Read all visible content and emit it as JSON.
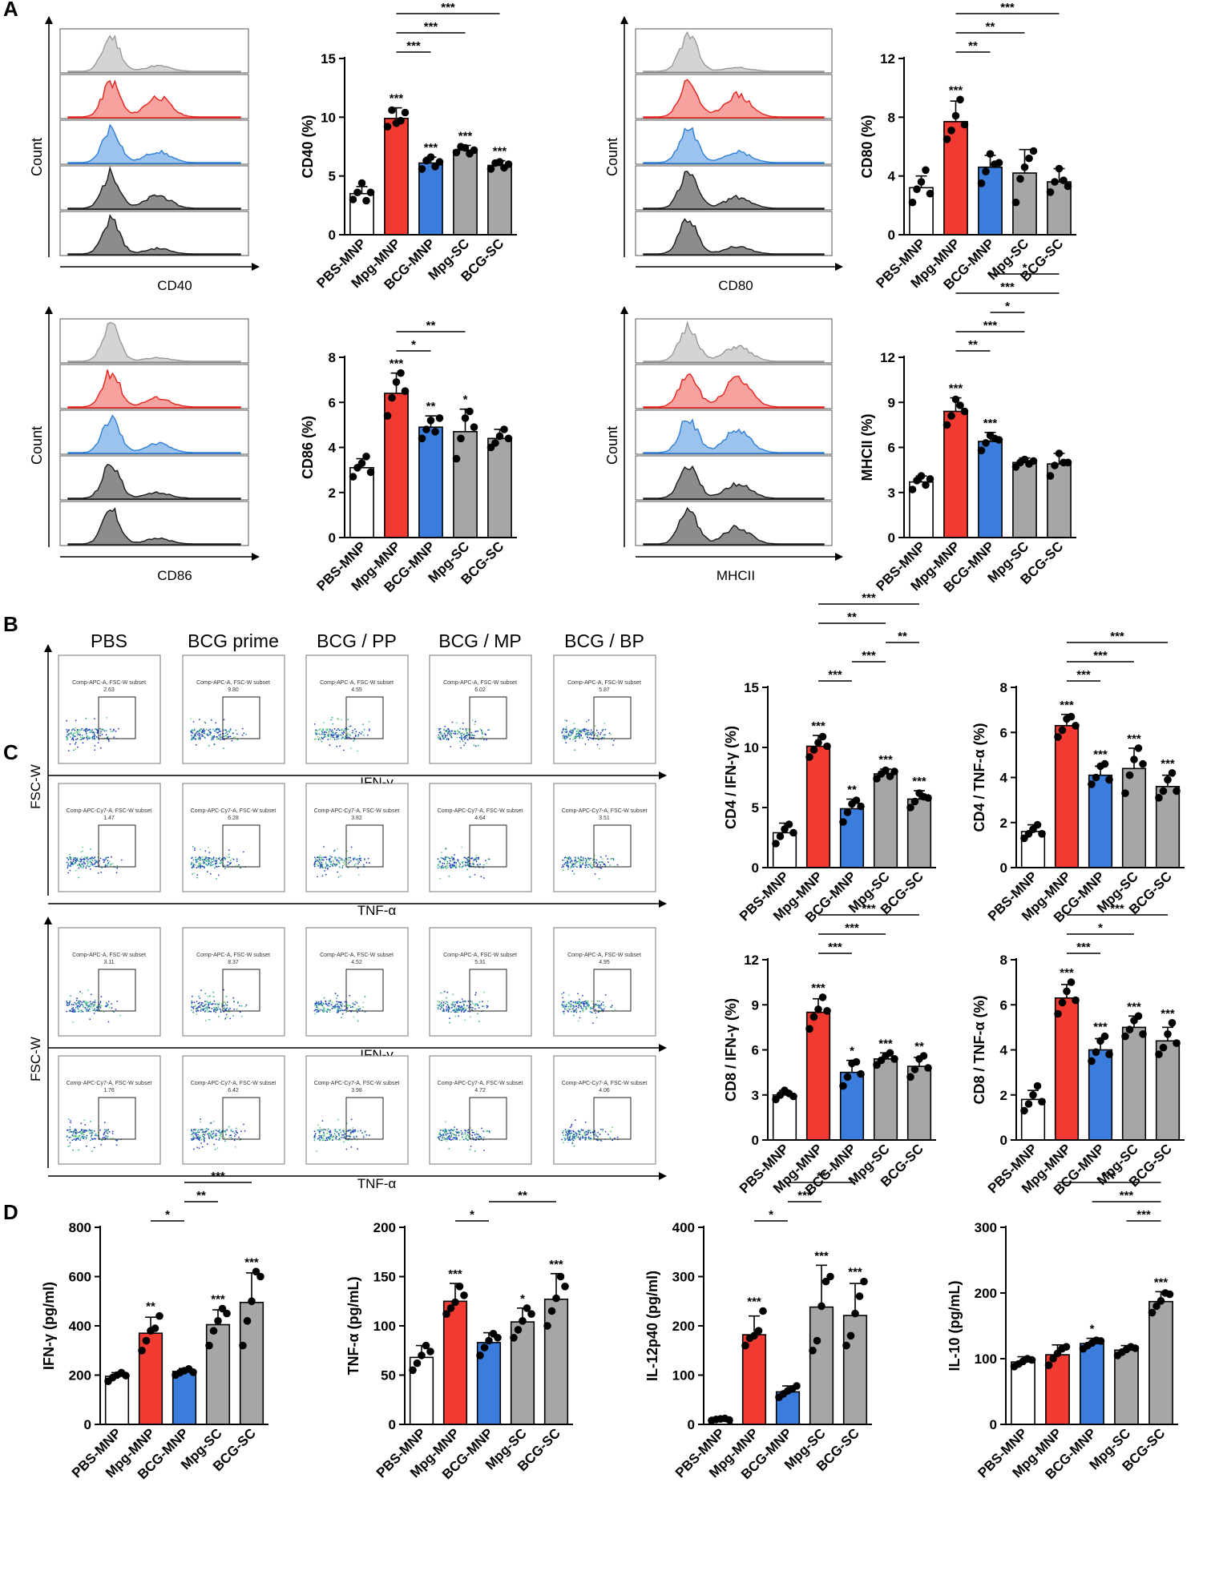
{
  "panel_labels": [
    "A",
    "B",
    "C",
    "D"
  ],
  "colors": {
    "pbs": "#ffffff",
    "mpg": "#f03a32",
    "bcg": "#3a7ddc",
    "gray": "#a6a6a6",
    "dark": "#444444"
  },
  "flow_A": [
    {
      "xlabel": "CD40",
      "ylabel": "Count"
    },
    {
      "xlabel": "CD80",
      "ylabel": "Count"
    },
    {
      "xlabel": "CD86",
      "ylabel": "Count"
    },
    {
      "xlabel": "MHCII",
      "ylabel": "Count"
    }
  ],
  "flow_B": {
    "conditions": [
      "PBS",
      "BCG prime",
      "BCG / PP",
      "BCG / MP",
      "BCG / BP"
    ],
    "ylabel": "FSC-W",
    "row_labels": [
      "IFN-γ",
      "TNF-α"
    ],
    "gate_names": [
      "Comp-APC-A, FSC-W subset",
      "Comp-APC-Cy7-A, FSC-W subset"
    ],
    "gate_values": [
      [
        "2.63",
        "9.80",
        "4.55",
        "6.02",
        "5.87"
      ],
      [
        "1.47",
        "6.28",
        "3.82",
        "4.64",
        "3.51"
      ]
    ]
  },
  "flow_C": {
    "ylabel": "FSC-W",
    "row_labels": [
      "IFN-γ",
      "TNF-α"
    ],
    "gate_names": [
      "Comp-APC-A, FSC-W subset",
      "Comp-APC-Cy7-A, FSC-W subset"
    ],
    "gate_values": [
      [
        "3.11",
        "8.37",
        "4.52",
        "5.31",
        "4.95"
      ],
      [
        "1.76",
        "6.42",
        "3.98",
        "4.72",
        "4.06"
      ]
    ]
  },
  "chart_data": [
    {
      "id": "A-CD40",
      "type": "bar",
      "ylabel": "CD40 (%)",
      "ylim": [
        0,
        15
      ],
      "yticks": [
        0,
        5,
        10,
        15
      ],
      "ytick_labels": [
        "0",
        "5",
        "10",
        "15"
      ],
      "categories": [
        "PBS-MNP",
        "Mpg-MNP",
        "BCG-MNP",
        "Mpg-SC",
        "BCG-SC"
      ],
      "values": [
        3.5,
        9.9,
        6.1,
        7.2,
        5.9
      ],
      "errors": [
        0.6,
        0.9,
        0.5,
        0.4,
        0.4
      ],
      "points": [
        [
          3.0,
          3.6,
          4.4,
          2.9,
          3.6
        ],
        [
          9.2,
          10.6,
          9.5,
          9.7,
          10.4
        ],
        [
          5.6,
          6.3,
          6.6,
          5.8,
          6.2
        ],
        [
          7.0,
          7.5,
          7.4,
          6.9,
          7.2
        ],
        [
          5.6,
          6.1,
          6.2,
          5.7,
          6.0
        ]
      ],
      "stars": [
        "",
        "***",
        "***",
        "***",
        "***"
      ],
      "brackets": [
        {
          "from": 1,
          "to": 2,
          "label": "***"
        },
        {
          "from": 1,
          "to": 3,
          "label": "***"
        },
        {
          "from": 1,
          "to": 4,
          "label": "***"
        }
      ]
    },
    {
      "id": "A-CD80",
      "type": "bar",
      "ylabel": "CD80 (%)",
      "ylim": [
        0,
        12
      ],
      "yticks": [
        0,
        4,
        8,
        12
      ],
      "ytick_labels": [
        "0",
        "4",
        "8",
        "12"
      ],
      "categories": [
        "PBS-MNP",
        "Mpg-MNP",
        "BCG-MNP",
        "Mpg-SC",
        "BCG-SC"
      ],
      "values": [
        3.2,
        7.7,
        4.6,
        4.2,
        3.6
      ],
      "errors": [
        0.8,
        1.4,
        0.8,
        1.6,
        0.9
      ],
      "points": [
        [
          2.2,
          3.1,
          3.6,
          4.4,
          2.8
        ],
        [
          6.5,
          7.1,
          8.1,
          9.2,
          7.5
        ],
        [
          3.5,
          4.3,
          5.5,
          4.8,
          4.9
        ],
        [
          2.2,
          3.8,
          4.6,
          5.2,
          5.7
        ],
        [
          2.9,
          3.6,
          4.5,
          3.7,
          3.3
        ]
      ],
      "stars": [
        "",
        "***",
        "",
        "",
        ""
      ],
      "brackets": [
        {
          "from": 1,
          "to": 2,
          "label": "**"
        },
        {
          "from": 1,
          "to": 3,
          "label": "**"
        },
        {
          "from": 1,
          "to": 4,
          "label": "***"
        }
      ]
    },
    {
      "id": "A-CD86",
      "type": "bar",
      "ylabel": "CD86 (%)",
      "ylim": [
        0,
        8
      ],
      "yticks": [
        0,
        2,
        4,
        6,
        8
      ],
      "ytick_labels": [
        "0",
        "2",
        "4",
        "6",
        "8"
      ],
      "categories": [
        "PBS-MNP",
        "Mpg-MNP",
        "BCG-MNP",
        "Mpg-SC",
        "BCG-SC"
      ],
      "values": [
        3.1,
        6.4,
        4.9,
        4.7,
        4.4
      ],
      "errors": [
        0.4,
        0.9,
        0.5,
        1.0,
        0.4
      ],
      "points": [
        [
          2.7,
          3.1,
          3.3,
          3.6,
          2.9
        ],
        [
          5.4,
          6.2,
          6.9,
          7.3,
          6.5
        ],
        [
          4.4,
          4.8,
          5.2,
          4.7,
          5.3
        ],
        [
          3.5,
          4.4,
          5.3,
          5.6,
          4.9
        ],
        [
          4.0,
          4.2,
          4.5,
          4.8,
          4.4
        ]
      ],
      "stars": [
        "",
        "***",
        "**",
        "*",
        ""
      ],
      "brackets": [
        {
          "from": 1,
          "to": 2,
          "label": "*"
        },
        {
          "from": 1,
          "to": 3,
          "label": "**"
        }
      ]
    },
    {
      "id": "A-MHCII",
      "type": "bar",
      "ylabel": "MHCII (%)",
      "ylim": [
        0,
        12
      ],
      "yticks": [
        0,
        3,
        6,
        9,
        12
      ],
      "ytick_labels": [
        "0",
        "3",
        "6",
        "9",
        "12"
      ],
      "categories": [
        "PBS-MNP",
        "Mpg-MNP",
        "BCG-MNP",
        "Mpg-SC",
        "BCG-SC"
      ],
      "values": [
        3.7,
        8.4,
        6.4,
        5.0,
        4.9
      ],
      "errors": [
        0.4,
        0.9,
        0.6,
        0.3,
        0.7
      ],
      "points": [
        [
          3.2,
          3.8,
          4.1,
          3.5,
          3.9
        ],
        [
          7.5,
          8.1,
          9.2,
          8.8,
          8.4
        ],
        [
          5.8,
          6.3,
          6.8,
          6.6,
          6.5
        ],
        [
          4.7,
          5.0,
          5.2,
          4.9,
          5.1
        ],
        [
          4.1,
          4.8,
          5.6,
          5.0,
          5.0
        ]
      ],
      "stars": [
        "",
        "***",
        "***",
        "",
        ""
      ],
      "brackets": [
        {
          "from": 1,
          "to": 2,
          "label": "**"
        },
        {
          "from": 1,
          "to": 3,
          "label": "***"
        },
        {
          "from": 2,
          "to": 3,
          "label": "*"
        },
        {
          "from": 1,
          "to": 4,
          "label": "***"
        },
        {
          "from": 2,
          "to": 4,
          "label": "*"
        }
      ]
    },
    {
      "id": "B-CD4-IFN",
      "type": "bar",
      "ylabel": "CD4 / IFN-γ (%)",
      "ylim": [
        0,
        15
      ],
      "yticks": [
        0,
        5,
        10,
        15
      ],
      "ytick_labels": [
        "0",
        "5",
        "10",
        "15"
      ],
      "categories": [
        "PBS-MNP",
        "Mpg-MNP",
        "BCG-MNP",
        "Mpg-SC",
        "BCG-SC"
      ],
      "values": [
        2.9,
        10.1,
        4.9,
        7.8,
        5.7
      ],
      "errors": [
        0.8,
        0.9,
        0.8,
        0.4,
        0.7
      ],
      "points": [
        [
          2.0,
          2.6,
          3.2,
          3.6,
          2.9
        ],
        [
          9.2,
          9.8,
          10.4,
          10.9,
          10.1
        ],
        [
          3.8,
          4.6,
          5.3,
          5.6,
          5.1
        ],
        [
          7.4,
          7.8,
          8.1,
          7.6,
          8.0
        ],
        [
          5.0,
          5.5,
          6.2,
          5.9,
          5.8
        ]
      ],
      "stars": [
        "",
        "***",
        "**",
        "***",
        "***"
      ],
      "brackets": [
        {
          "from": 1,
          "to": 2,
          "label": "***"
        },
        {
          "from": 2,
          "to": 3,
          "label": "***"
        },
        {
          "from": 3,
          "to": 4,
          "label": "**"
        },
        {
          "from": 1,
          "to": 3,
          "label": "**"
        },
        {
          "from": 1,
          "to": 4,
          "label": "***"
        }
      ]
    },
    {
      "id": "B-CD4-TNF",
      "type": "bar",
      "ylabel": "CD4 / TNF-α (%)",
      "ylim": [
        0,
        8
      ],
      "yticks": [
        0,
        2,
        4,
        6,
        8
      ],
      "ytick_labels": [
        "0",
        "2",
        "4",
        "6",
        "8"
      ],
      "categories": [
        "PBS-MNP",
        "Mpg-MNP",
        "BCG-MNP",
        "Mpg-SC",
        "BCG-SC"
      ],
      "values": [
        1.6,
        6.3,
        4.1,
        4.4,
        3.6
      ],
      "errors": [
        0.3,
        0.5,
        0.4,
        0.9,
        0.5
      ],
      "points": [
        [
          1.3,
          1.5,
          1.7,
          1.9,
          1.5
        ],
        [
          5.8,
          6.1,
          6.6,
          6.7,
          6.3
        ],
        [
          3.7,
          4.0,
          4.5,
          4.6,
          3.9
        ],
        [
          3.3,
          4.1,
          4.8,
          5.3,
          4.6
        ],
        [
          3.1,
          3.4,
          3.9,
          4.2,
          3.4
        ]
      ],
      "stars": [
        "",
        "***",
        "***",
        "***",
        "***"
      ],
      "brackets": [
        {
          "from": 1,
          "to": 2,
          "label": "***"
        },
        {
          "from": 1,
          "to": 3,
          "label": "***"
        },
        {
          "from": 1,
          "to": 4,
          "label": "***"
        }
      ]
    },
    {
      "id": "C-CD8-IFN",
      "type": "bar",
      "ylabel": "CD8 / IFN-γ (%)",
      "ylim": [
        0,
        12
      ],
      "yticks": [
        0,
        3,
        6,
        9,
        12
      ],
      "ytick_labels": [
        "0",
        "3",
        "6",
        "9",
        "12"
      ],
      "categories": [
        "PBS-MNP",
        "Mpg-MNP",
        "BCG-MNP",
        "Mpg-SC",
        "BCG-SC"
      ],
      "values": [
        3.0,
        8.5,
        4.5,
        5.4,
        4.9
      ],
      "errors": [
        0.3,
        0.9,
        0.8,
        0.4,
        0.6
      ],
      "points": [
        [
          2.7,
          3.0,
          3.3,
          3.1,
          2.9
        ],
        [
          7.4,
          8.2,
          8.7,
          9.5,
          8.6
        ],
        [
          3.6,
          4.2,
          5.1,
          5.2,
          4.4
        ],
        [
          5.0,
          5.3,
          5.6,
          5.8,
          5.4
        ],
        [
          4.2,
          4.7,
          5.4,
          5.6,
          4.8
        ]
      ],
      "stars": [
        "",
        "***",
        "*",
        "***",
        "**"
      ],
      "brackets": [
        {
          "from": 1,
          "to": 2,
          "label": "***"
        },
        {
          "from": 1,
          "to": 3,
          "label": "***"
        },
        {
          "from": 1,
          "to": 4,
          "label": "***"
        }
      ]
    },
    {
      "id": "C-CD8-TNF",
      "type": "bar",
      "ylabel": "CD8 / TNF-α (%)",
      "ylim": [
        0,
        8
      ],
      "yticks": [
        0,
        2,
        4,
        6,
        8
      ],
      "ytick_labels": [
        "0",
        "2",
        "4",
        "6",
        "8"
      ],
      "categories": [
        "PBS-MNP",
        "Mpg-MNP",
        "BCG-MNP",
        "Mpg-SC",
        "BCG-SC"
      ],
      "values": [
        1.8,
        6.3,
        4.0,
        5.0,
        4.4
      ],
      "errors": [
        0.4,
        0.6,
        0.5,
        0.5,
        0.6
      ],
      "points": [
        [
          1.3,
          1.6,
          2.0,
          2.4,
          1.7
        ],
        [
          5.6,
          6.1,
          6.6,
          7.0,
          6.2
        ],
        [
          3.5,
          3.9,
          4.4,
          4.6,
          3.8
        ],
        [
          4.6,
          4.9,
          5.3,
          5.5,
          4.7
        ],
        [
          3.8,
          4.1,
          4.7,
          5.2,
          4.3
        ]
      ],
      "stars": [
        "",
        "***",
        "***",
        "***",
        "***"
      ],
      "brackets": [
        {
          "from": 1,
          "to": 2,
          "label": "***"
        },
        {
          "from": 1,
          "to": 3,
          "label": "*"
        },
        {
          "from": 1,
          "to": 4,
          "label": "***"
        }
      ]
    },
    {
      "id": "D-IFN",
      "type": "bar",
      "ylabel": "IFN-γ (pg/ml)",
      "ylim": [
        0,
        800
      ],
      "yticks": [
        0,
        200,
        400,
        600,
        800
      ],
      "ytick_labels": [
        "0",
        "200",
        "400",
        "600",
        "800"
      ],
      "categories": [
        "PBS-MNP",
        "Mpg-MNP",
        "BCG-MNP",
        "Mpg-SC",
        "BCG-SC"
      ],
      "values": [
        195,
        370,
        215,
        405,
        495
      ],
      "errors": [
        15,
        65,
        12,
        60,
        120
      ],
      "points": [
        [
          175,
          190,
          200,
          210,
          198
        ],
        [
          300,
          340,
          380,
          390,
          440
        ],
        [
          200,
          210,
          218,
          225,
          212
        ],
        [
          320,
          380,
          420,
          470,
          450
        ],
        [
          320,
          420,
          500,
          620,
          600
        ]
      ],
      "stars": [
        "",
        "**",
        "",
        "***",
        "***"
      ],
      "brackets": [
        {
          "from": 1,
          "to": 2,
          "label": "*"
        },
        {
          "from": 2,
          "to": 3,
          "label": "**"
        },
        {
          "from": 2,
          "to": 4,
          "label": "***"
        }
      ]
    },
    {
      "id": "D-TNF",
      "type": "bar",
      "ylabel": "TNF-α (pg/mL)",
      "ylim": [
        0,
        200
      ],
      "yticks": [
        0,
        50,
        100,
        150,
        200
      ],
      "ytick_labels": [
        "0",
        "50",
        "100",
        "150",
        "200"
      ],
      "categories": [
        "PBS-MNP",
        "Mpg-MNP",
        "BCG-MNP",
        "Mpg-SC",
        "BCG-SC"
      ],
      "values": [
        68,
        125,
        83,
        104,
        127
      ],
      "errors": [
        12,
        18,
        10,
        14,
        26
      ],
      "points": [
        [
          55,
          62,
          70,
          80,
          74
        ],
        [
          112,
          118,
          124,
          140,
          131
        ],
        [
          70,
          78,
          85,
          92,
          88
        ],
        [
          88,
          96,
          105,
          118,
          112
        ],
        [
          100,
          115,
          128,
          150,
          140
        ]
      ],
      "stars": [
        "",
        "***",
        "",
        "*",
        "***"
      ],
      "brackets": [
        {
          "from": 1,
          "to": 2,
          "label": "*"
        },
        {
          "from": 2,
          "to": 4,
          "label": "**"
        }
      ]
    },
    {
      "id": "D-IL12",
      "type": "bar",
      "ylabel": "IL-12p40 (pg/ml)",
      "ylim": [
        0,
        400
      ],
      "yticks": [
        0,
        100,
        200,
        300,
        400
      ],
      "ytick_labels": [
        "0",
        "100",
        "200",
        "300",
        "400"
      ],
      "categories": [
        "PBS-MNP",
        "Mpg-MNP",
        "BCG-MNP",
        "Mpg-SC",
        "BCG-SC"
      ],
      "values": [
        10,
        182,
        66,
        238,
        221
      ],
      "errors": [
        3,
        38,
        12,
        85,
        65
      ],
      "points": [
        [
          8,
          10,
          11,
          12,
          9
        ],
        [
          160,
          175,
          180,
          190,
          230
        ],
        [
          55,
          62,
          68,
          72,
          78
        ],
        [
          150,
          170,
          240,
          290,
          300
        ],
        [
          160,
          180,
          225,
          260,
          290
        ]
      ],
      "stars": [
        "",
        "***",
        "",
        "***",
        "***"
      ],
      "brackets": [
        {
          "from": 1,
          "to": 2,
          "label": "*"
        },
        {
          "from": 2,
          "to": 3,
          "label": "***"
        },
        {
          "from": 2,
          "to": 4,
          "label": "**"
        }
      ]
    },
    {
      "id": "D-IL10",
      "type": "bar",
      "ylabel": "IL-10 (pg/mL)",
      "ylim": [
        0,
        300
      ],
      "yticks": [
        0,
        100,
        200,
        300
      ],
      "ytick_labels": [
        "0",
        "100",
        "200",
        "300"
      ],
      "categories": [
        "PBS-MNP",
        "Mpg-MNP",
        "BCG-MNP",
        "Mpg-SC",
        "BCG-SC"
      ],
      "values": [
        95,
        106,
        123,
        113,
        187
      ],
      "errors": [
        8,
        15,
        8,
        7,
        15
      ],
      "points": [
        [
          88,
          92,
          96,
          100,
          98
        ],
        [
          90,
          100,
          108,
          115,
          118
        ],
        [
          115,
          120,
          124,
          128,
          127
        ],
        [
          105,
          110,
          114,
          118,
          116
        ],
        [
          170,
          180,
          188,
          200,
          198
        ]
      ],
      "stars": [
        "",
        "",
        "*",
        "",
        "***"
      ],
      "brackets": [
        {
          "from": 3,
          "to": 4,
          "label": "***"
        },
        {
          "from": 2,
          "to": 4,
          "label": "***"
        },
        {
          "from": 1,
          "to": 4,
          "label": "***"
        }
      ]
    }
  ]
}
